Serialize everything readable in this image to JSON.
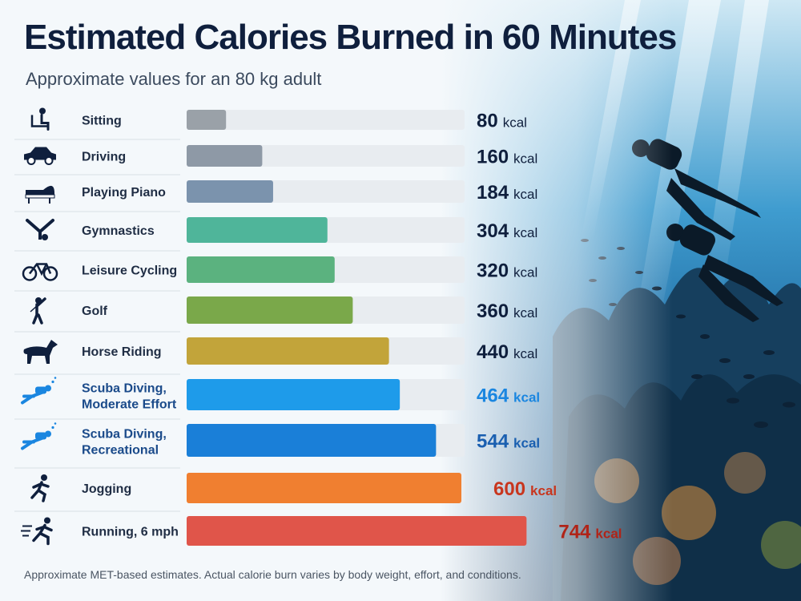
{
  "title": "Estimated Calories Burned in 60 Minutes",
  "subtitle": "Approximate values for an 80 kg adult",
  "footnote": "Approximate MET-based estimates. Actual calorie burn varies by body weight, effort, and conditions.",
  "chart_data": {
    "type": "bar",
    "orientation": "horizontal",
    "title": "Estimated Calories Burned in 60 Minutes",
    "subtitle": "Approximate values for an 80 kg adult",
    "unit": "kcal",
    "xlim": [
      0,
      840
    ],
    "categories": [
      [
        "Sitting"
      ],
      [
        "Driving"
      ],
      [
        "Playing Piano"
      ],
      [
        "Gymnastics"
      ],
      [
        "Leisure Cycling"
      ],
      [
        "Golf"
      ],
      [
        "Horse Riding"
      ],
      [
        "Scuba Diving,",
        "Moderate Effort"
      ],
      [
        "Scuba Diving,",
        "Recreational"
      ],
      [
        "Jogging"
      ],
      [
        "Running, 6 mph"
      ]
    ],
    "values": [
      80,
      160,
      184,
      304,
      320,
      360,
      440,
      464,
      544,
      600,
      744
    ],
    "value_labels": [
      "80",
      "160",
      "184",
      "304",
      "320",
      "360",
      "440",
      "464",
      "544",
      "600",
      "744"
    ],
    "unit_label": "kcal",
    "icons": [
      "sitting-icon",
      "car-icon",
      "piano-icon",
      "gymnastics-icon",
      "bicycle-icon",
      "golf-icon",
      "horse-icon",
      "diver-icon",
      "diver-icon",
      "jogger-icon",
      "runner-icon"
    ],
    "bar_colors": [
      "#9aa1a8",
      "#8e99a6",
      "#7b93ad",
      "#4fb59a",
      "#5bb27f",
      "#7aa84a",
      "#c2a43a",
      "#1e9bea",
      "#1a7fd8",
      "#f07f30",
      "#e0554a"
    ],
    "label_colors": [
      "#0f1f3d",
      "#0f1f3d",
      "#0f1f3d",
      "#0f1f3d",
      "#0f1f3d",
      "#0f1f3d",
      "#0f1f3d",
      "#1a86e0",
      "#1a5fb0",
      "#c8361e",
      "#b02418"
    ],
    "track_color": "#e8ecf0",
    "grid": false,
    "legend": "none"
  }
}
